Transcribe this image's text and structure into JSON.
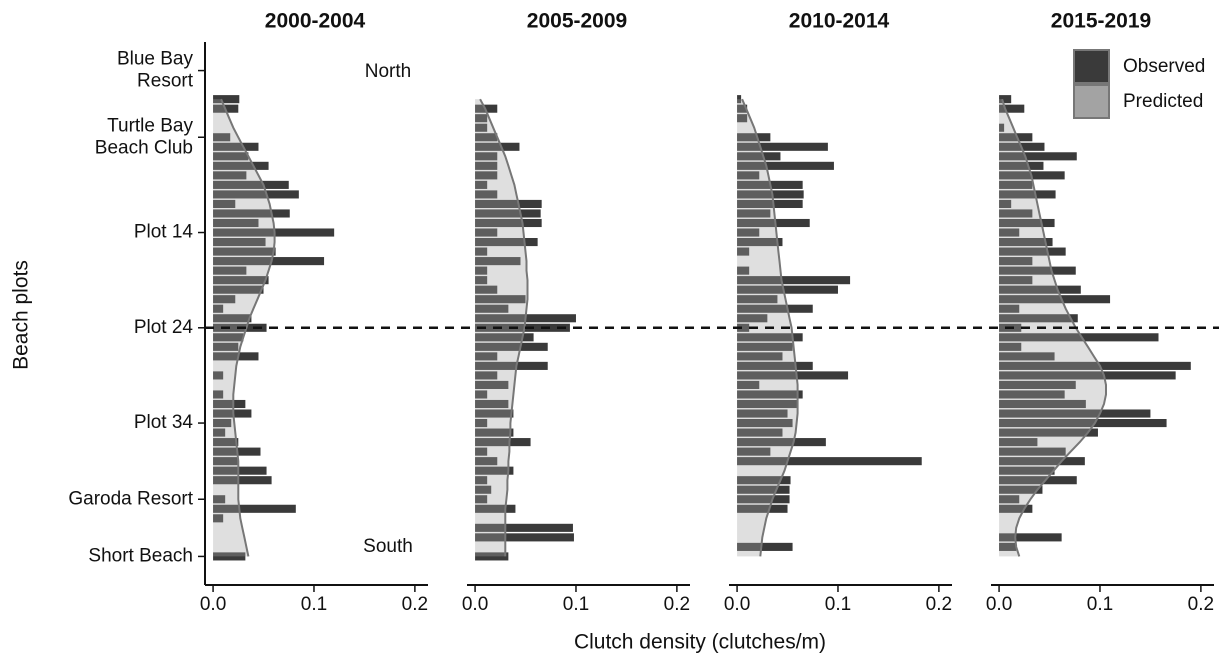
{
  "chart_data": {
    "type": "bar",
    "xlabel": "Clutch density (clutches/m)",
    "ylabel": "Beach plots",
    "xlim": [
      -0.008,
      0.213
    ],
    "xticks": [
      {
        "value": 0,
        "label": "0.0"
      },
      0.1,
      0.2
    ],
    "ylim": [
      -6,
      51
    ],
    "yreverse": true,
    "yticks": [
      {
        "value": -3,
        "label": "Blue Bay\nResort"
      },
      {
        "value": 4,
        "label": "Turtle Bay\nBeach Club"
      },
      {
        "value": 14,
        "label": "Plot 14"
      },
      {
        "value": 24,
        "label": "Plot 24"
      },
      {
        "value": 34,
        "label": "Plot 34"
      },
      {
        "value": 42,
        "label": "Garoda Resort"
      },
      {
        "value": 48,
        "label": "Short Beach"
      }
    ],
    "hline": 24,
    "annotations": [
      "North",
      "South"
    ],
    "legend": "top-right",
    "panels": [
      {
        "title": "2000-2004",
        "series": [
          {
            "name": "Observed",
            "type": "bar",
            "color": "#3a3a3a",
            "values": [
              0.026,
              0.025,
              0,
              0,
              0.017,
              0.045,
              0.035,
              0.055,
              0.033,
              0.075,
              0.085,
              0.022,
              0.076,
              0.045,
              0.12,
              0.052,
              0.062,
              0.11,
              0.033,
              0.055,
              0.05,
              0.022,
              0.01,
              0.038,
              0.053,
              0.03,
              0.025,
              0.045,
              0,
              0.01,
              0,
              0.01,
              0.032,
              0.038,
              0.018,
              0.012,
              0.025,
              0.047,
              0.025,
              0.053,
              0.058,
              0,
              0.012,
              0.082,
              0.01,
              0,
              0,
              0,
              0.032
            ]
          },
          {
            "name": "Predicted",
            "type": "area",
            "color": "#a3a3a3",
            "values": [
              0.008,
              0.012,
              0.016,
              0.02,
              0.025,
              0.03,
              0.035,
              0.04,
              0.045,
              0.05,
              0.053,
              0.056,
              0.058,
              0.06,
              0.061,
              0.061,
              0.06,
              0.058,
              0.055,
              0.052,
              0.048,
              0.044,
              0.04,
              0.036,
              0.033,
              0.03,
              0.027,
              0.025,
              0.023,
              0.022,
              0.021,
              0.02,
              0.02,
              0.02,
              0.021,
              0.022,
              0.023,
              0.024,
              0.025,
              0.025,
              0.025,
              0.025,
              0.025,
              0.026,
              0.027,
              0.029,
              0.031,
              0.033,
              0.035
            ]
          }
        ]
      },
      {
        "title": "2005-2009",
        "series": [
          {
            "name": "Observed",
            "type": "bar",
            "color": "#3a3a3a",
            "values": [
              0,
              0.022,
              0.012,
              0.012,
              0.022,
              0.044,
              0.022,
              0.022,
              0.022,
              0.012,
              0.022,
              0.066,
              0.065,
              0.066,
              0.022,
              0.062,
              0.012,
              0.045,
              0.012,
              0.012,
              0.022,
              0.05,
              0.033,
              0.1,
              0.094,
              0.058,
              0.072,
              0.022,
              0.072,
              0.022,
              0.033,
              0.012,
              0.033,
              0.038,
              0.012,
              0.038,
              0.055,
              0.012,
              0.022,
              0.038,
              0.012,
              0.016,
              0.012,
              0.04,
              0,
              0.097,
              0.098,
              0,
              0.033
            ]
          },
          {
            "name": "Predicted",
            "type": "area",
            "color": "#a3a3a3",
            "values": [
              0.005,
              0.01,
              0.014,
              0.018,
              0.022,
              0.026,
              0.03,
              0.033,
              0.036,
              0.039,
              0.041,
              0.043,
              0.045,
              0.047,
              0.048,
              0.049,
              0.05,
              0.051,
              0.051,
              0.052,
              0.052,
              0.052,
              0.051,
              0.05,
              0.049,
              0.047,
              0.045,
              0.043,
              0.041,
              0.04,
              0.039,
              0.038,
              0.037,
              0.036,
              0.035,
              0.035,
              0.034,
              0.034,
              0.033,
              0.033,
              0.032,
              0.032,
              0.031,
              0.03,
              0.03,
              0.03,
              0.03,
              0.03,
              0.03
            ]
          }
        ]
      },
      {
        "title": "2010-2014",
        "series": [
          {
            "name": "Observed",
            "type": "bar",
            "color": "#3a3a3a",
            "values": [
              0.004,
              0.01,
              0.01,
              0,
              0.033,
              0.09,
              0.043,
              0.096,
              0.022,
              0.065,
              0.066,
              0.065,
              0.033,
              0.072,
              0.022,
              0.045,
              0.012,
              0,
              0.012,
              0.112,
              0.1,
              0.04,
              0.075,
              0.03,
              0.012,
              0.065,
              0.055,
              0.045,
              0.075,
              0.11,
              0.022,
              0.065,
              0.06,
              0.05,
              0.055,
              0.045,
              0.088,
              0.033,
              0.183,
              0,
              0.053,
              0.052,
              0.052,
              0.05,
              0,
              0,
              0,
              0.055,
              0
            ]
          },
          {
            "name": "Predicted",
            "type": "area",
            "color": "#a3a3a3",
            "values": [
              0.005,
              0.009,
              0.013,
              0.017,
              0.02,
              0.023,
              0.026,
              0.029,
              0.031,
              0.033,
              0.035,
              0.036,
              0.037,
              0.038,
              0.039,
              0.04,
              0.041,
              0.042,
              0.043,
              0.044,
              0.046,
              0.048,
              0.05,
              0.052,
              0.054,
              0.055,
              0.056,
              0.057,
              0.058,
              0.059,
              0.06,
              0.06,
              0.06,
              0.06,
              0.059,
              0.058,
              0.056,
              0.053,
              0.05,
              0.047,
              0.043,
              0.039,
              0.035,
              0.032,
              0.029,
              0.027,
              0.025,
              0.024,
              0.023
            ]
          }
        ]
      },
      {
        "title": "2015-2019",
        "series": [
          {
            "name": "Observed",
            "type": "bar",
            "color": "#3a3a3a",
            "values": [
              0.012,
              0.025,
              0,
              0.005,
              0.033,
              0.045,
              0.077,
              0.044,
              0.065,
              0.033,
              0.056,
              0.012,
              0.033,
              0.055,
              0.02,
              0.053,
              0.066,
              0.033,
              0.076,
              0.033,
              0.081,
              0.11,
              0.02,
              0.078,
              0.022,
              0.158,
              0.022,
              0.055,
              0.19,
              0.175,
              0.076,
              0.065,
              0.086,
              0.15,
              0.166,
              0.098,
              0.038,
              0.066,
              0.085,
              0.055,
              0.077,
              0.043,
              0.02,
              0.033,
              0,
              0,
              0.062,
              0.017,
              0
            ]
          },
          {
            "name": "Predicted",
            "type": "area",
            "color": "#a3a3a3",
            "values": [
              0.003,
              0.006,
              0.01,
              0.014,
              0.018,
              0.022,
              0.026,
              0.029,
              0.032,
              0.034,
              0.036,
              0.038,
              0.04,
              0.042,
              0.044,
              0.046,
              0.048,
              0.05,
              0.052,
              0.055,
              0.058,
              0.062,
              0.066,
              0.071,
              0.076,
              0.082,
              0.088,
              0.094,
              0.1,
              0.104,
              0.106,
              0.106,
              0.104,
              0.1,
              0.095,
              0.088,
              0.08,
              0.071,
              0.062,
              0.054,
              0.046,
              0.038,
              0.031,
              0.025,
              0.02,
              0.017,
              0.016,
              0.017,
              0.02
            ]
          }
        ]
      }
    ]
  }
}
